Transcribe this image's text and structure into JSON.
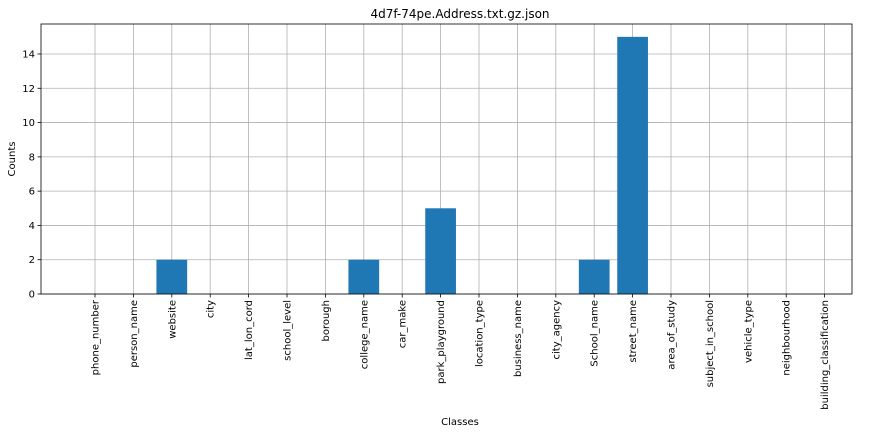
{
  "chart_data": {
    "type": "bar",
    "title": "4d7f-74pe.Address.txt.gz.json",
    "xlabel": "Classes",
    "ylabel": "Counts",
    "categories": [
      "phone_number",
      "person_name",
      "website",
      "city",
      "lat_lon_cord",
      "school_level",
      "borough",
      "college_name",
      "car_make",
      "park_playground",
      "location_type",
      "business_name",
      "city_agency",
      "School_name",
      "street_name",
      "area_of_study",
      "subject_in_school",
      "vehicle_type",
      "neighbourhood",
      "building_classification"
    ],
    "values": [
      0,
      0,
      2,
      0,
      0,
      0,
      0,
      2,
      0,
      5,
      0,
      0,
      0,
      2,
      15,
      0,
      0,
      0,
      0,
      0
    ],
    "ylim": [
      0,
      15.75
    ],
    "yticks": [
      0,
      2,
      4,
      6,
      8,
      10,
      12,
      14
    ],
    "grid": true,
    "bar_color": "#1f77b4",
    "grid_color": "#b0b0b0"
  }
}
